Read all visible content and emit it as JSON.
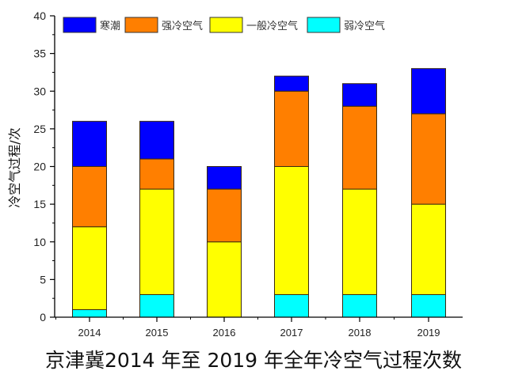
{
  "chart_data": {
    "type": "bar",
    "stacked": true,
    "title": "",
    "caption": "京津冀2014 年至 2019 年全年冷空气过程次数",
    "xlabel": "",
    "ylabel": "冷空气过程/次",
    "ylim": [
      0,
      40
    ],
    "yticks": [
      0,
      5,
      10,
      15,
      20,
      25,
      30,
      35,
      40
    ],
    "grid": false,
    "legend_position": "top-inside",
    "categories": [
      "2014",
      "2015",
      "2016",
      "2017",
      "2018",
      "2019"
    ],
    "series": [
      {
        "name": "弱冷空气",
        "color": "#00FFFF",
        "values": [
          1,
          3,
          0,
          3,
          3,
          3
        ]
      },
      {
        "name": "一般冷空气",
        "color": "#FFFF00",
        "values": [
          11,
          14,
          10,
          17,
          14,
          12
        ]
      },
      {
        "name": "强冷空气",
        "color": "#FF7F00",
        "values": [
          8,
          4,
          7,
          10,
          11,
          12
        ]
      },
      {
        "name": "寒潮",
        "color": "#0000FF",
        "values": [
          6,
          5,
          3,
          2,
          3,
          6
        ]
      }
    ],
    "totals": [
      26,
      26,
      20,
      32,
      31,
      33
    ],
    "legend_order": [
      "寒潮",
      "强冷空气",
      "一般冷空气",
      "弱冷空气"
    ]
  }
}
